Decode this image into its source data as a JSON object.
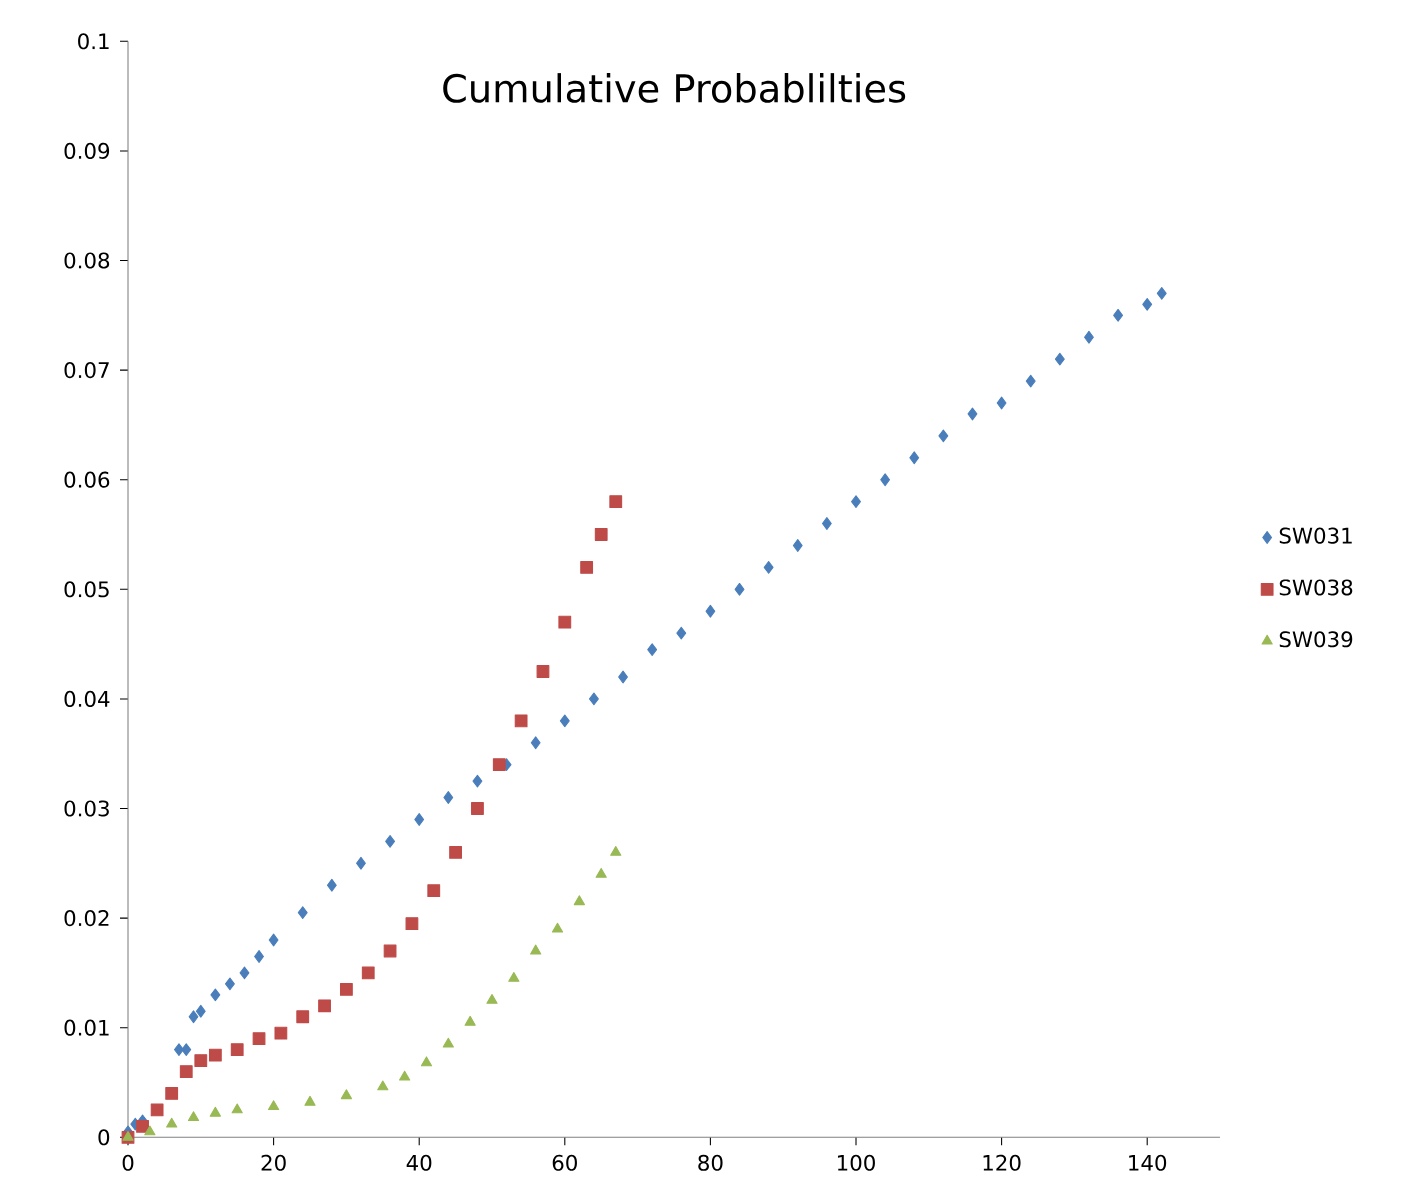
{
  "chart_data": {
    "type": "scatter",
    "title": "Cumulative Probablilties",
    "xlim": [
      0,
      150
    ],
    "xticks": [
      0,
      20,
      40,
      60,
      80,
      100,
      120,
      140
    ],
    "ylim": [
      0,
      0.1
    ],
    "yticks": [
      0,
      0.01,
      0.02,
      0.03,
      0.04,
      0.05,
      0.06,
      0.07,
      0.08,
      0.09,
      0.1
    ],
    "grid": false,
    "legend": "right",
    "series": [
      {
        "name": "SW031",
        "color": "#4a7ebb",
        "marker": "diamond",
        "x": [
          0,
          1,
          2,
          7,
          8,
          9,
          10,
          12,
          14,
          16,
          18,
          20,
          24,
          28,
          32,
          36,
          40,
          44,
          48,
          52,
          56,
          60,
          64,
          68,
          72,
          76,
          80,
          84,
          88,
          92,
          96,
          100,
          104,
          108,
          112,
          116,
          120,
          124,
          128,
          132,
          136,
          140,
          142
        ],
        "values": [
          0.0005,
          0.0012,
          0.0015,
          0.008,
          0.008,
          0.011,
          0.0115,
          0.013,
          0.014,
          0.015,
          0.0165,
          0.018,
          0.0205,
          0.023,
          0.025,
          0.027,
          0.029,
          0.031,
          0.0325,
          0.034,
          0.036,
          0.038,
          0.04,
          0.042,
          0.0445,
          0.046,
          0.048,
          0.05,
          0.052,
          0.054,
          0.056,
          0.058,
          0.06,
          0.062,
          0.064,
          0.066,
          0.067,
          0.069,
          0.071,
          0.073,
          0.075,
          0.076,
          0.077
        ]
      },
      {
        "name": "SW038",
        "color": "#be4b48",
        "marker": "square",
        "x": [
          0,
          2,
          4,
          6,
          8,
          10,
          12,
          15,
          18,
          21,
          24,
          27,
          30,
          33,
          36,
          39,
          42,
          45,
          48,
          51,
          54,
          57,
          60,
          63,
          65,
          67
        ],
        "values": [
          0,
          0.001,
          0.0025,
          0.004,
          0.006,
          0.007,
          0.0075,
          0.008,
          0.009,
          0.0095,
          0.011,
          0.012,
          0.0135,
          0.015,
          0.017,
          0.0195,
          0.0225,
          0.026,
          0.03,
          0.034,
          0.038,
          0.0425,
          0.047,
          0.052,
          0.055,
          0.058
        ]
      },
      {
        "name": "SW039",
        "color": "#98b954",
        "marker": "triangle",
        "x": [
          0,
          3,
          6,
          9,
          12,
          15,
          20,
          25,
          30,
          35,
          38,
          41,
          44,
          47,
          50,
          53,
          56,
          59,
          62,
          65,
          67
        ],
        "values": [
          0,
          0.0005,
          0.0012,
          0.0018,
          0.0022,
          0.0025,
          0.0028,
          0.0032,
          0.0038,
          0.0046,
          0.0055,
          0.0068,
          0.0085,
          0.0105,
          0.0125,
          0.0145,
          0.017,
          0.019,
          0.0215,
          0.024,
          0.026
        ]
      }
    ]
  }
}
